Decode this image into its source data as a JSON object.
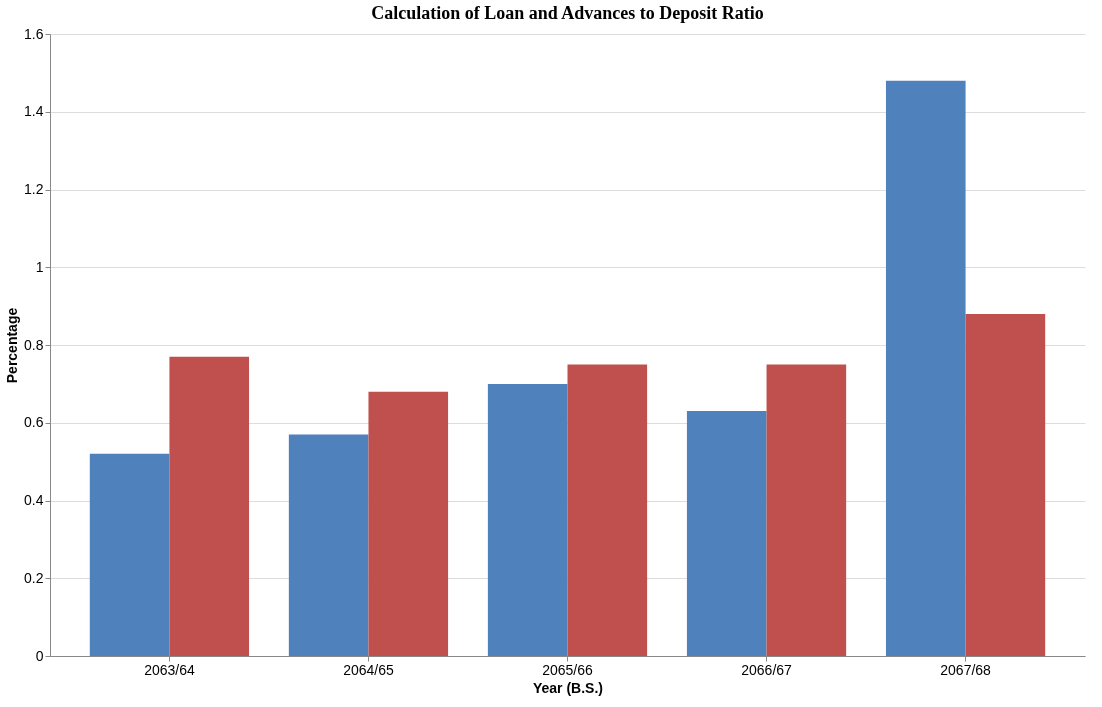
{
  "chart_data": {
    "type": "bar",
    "title": "Calculation of Loan and Advances to Deposit Ratio",
    "xlabel": "Year (B.S.)",
    "ylabel": "Percentage",
    "categories": [
      "2063/64",
      "2064/65",
      "2065/66",
      "2066/67",
      "2067/68"
    ],
    "series": [
      {
        "color": "#4f81bd",
        "values": [
          0.52,
          0.57,
          0.7,
          0.63,
          1.48
        ]
      },
      {
        "color": "#c0504d",
        "values": [
          0.77,
          0.68,
          0.75,
          0.75,
          0.88
        ]
      }
    ],
    "ylim": [
      0,
      1.6
    ],
    "yticks": [
      0,
      0.2,
      0.4,
      0.6,
      0.8,
      1,
      1.2,
      1.4,
      1.6
    ],
    "grid": "y"
  }
}
